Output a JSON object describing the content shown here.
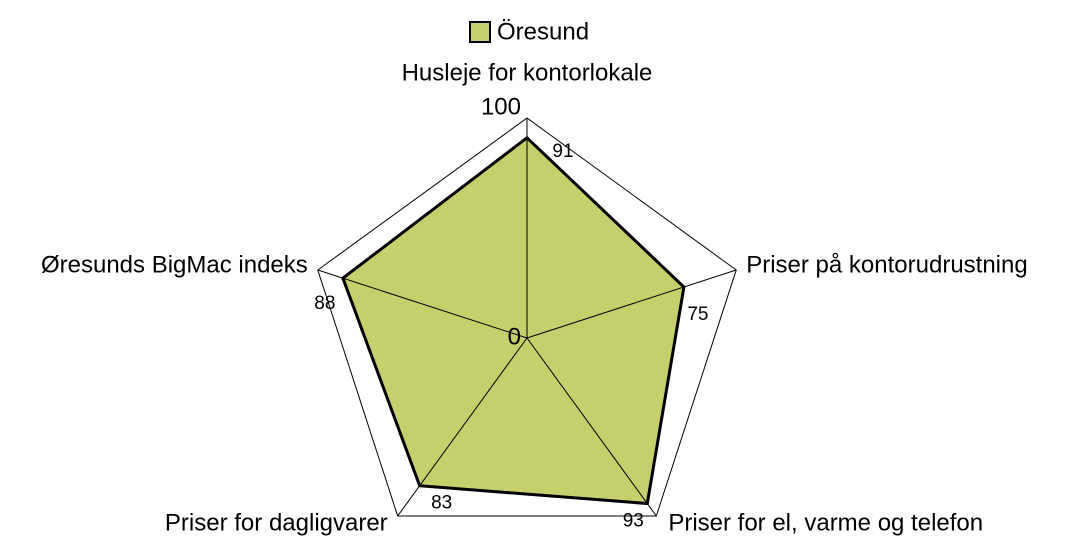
{
  "chart_data": {
    "type": "radar",
    "categories": [
      "Husleje for kontorlokale",
      "Priser på kontorudrustning",
      "Priser for el, varme og telefon",
      "Priser for dagligvarer",
      "Øresunds BigMac indeks"
    ],
    "series": [
      {
        "name": "Öresund",
        "color": "#c5cf6b",
        "values": [
          91,
          75,
          93,
          83,
          88
        ]
      }
    ],
    "ylim": [
      0,
      100
    ],
    "yticks": [
      0,
      100
    ],
    "grid": true,
    "legend": "top"
  }
}
